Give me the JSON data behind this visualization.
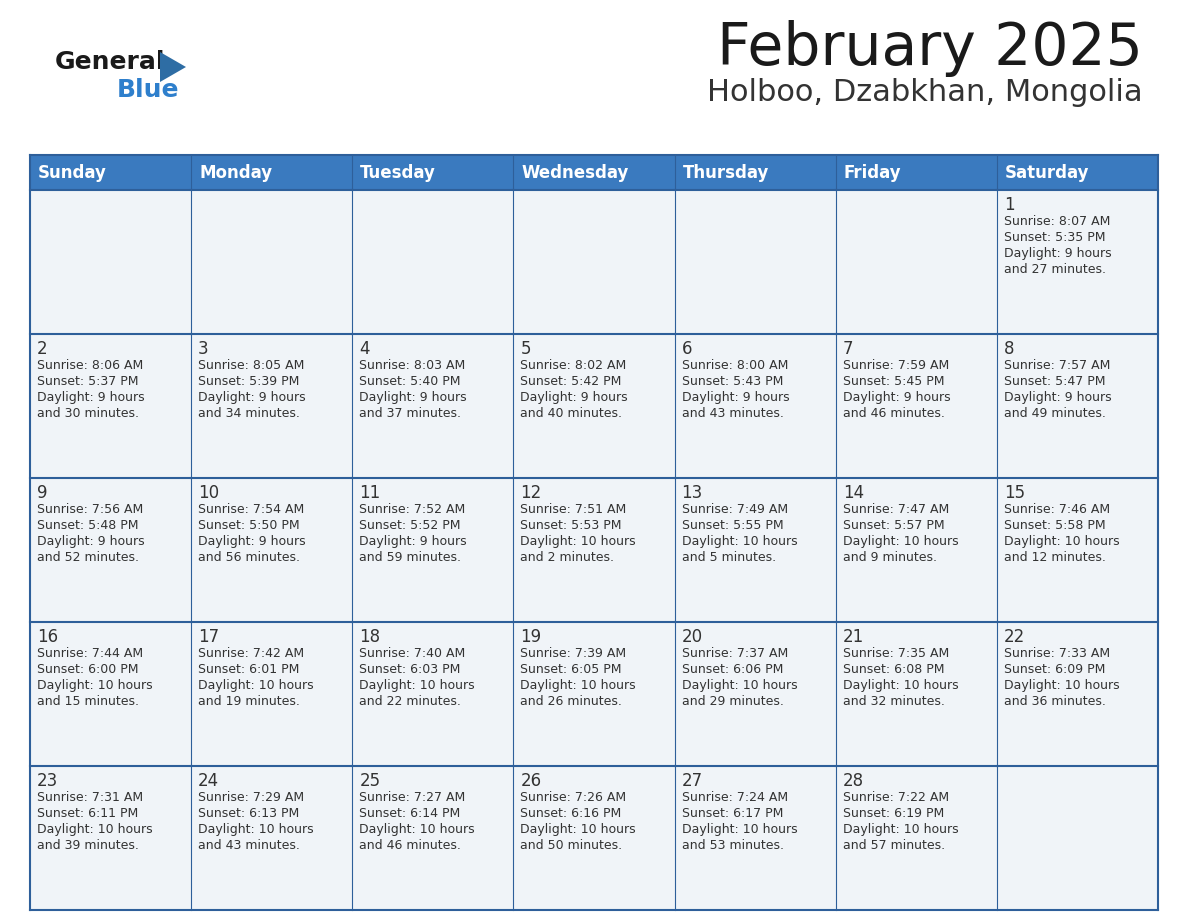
{
  "title": "February 2025",
  "subtitle": "Holboo, Dzabkhan, Mongolia",
  "days_of_week": [
    "Sunday",
    "Monday",
    "Tuesday",
    "Wednesday",
    "Thursday",
    "Friday",
    "Saturday"
  ],
  "header_bg": "#3a7abf",
  "header_text_color": "#FFFFFF",
  "cell_bg": "#f0f4f8",
  "border_color": "#2E5F9A",
  "day_num_color": "#333333",
  "info_text_color": "#333333",
  "title_color": "#1a1a1a",
  "subtitle_color": "#333333",
  "general_text_color": "#1a1a1a",
  "blue_text_color": "#2E7FCC",
  "triangle_color": "#2E6DA4",
  "calendar": [
    [
      {
        "day": null,
        "info": ""
      },
      {
        "day": null,
        "info": ""
      },
      {
        "day": null,
        "info": ""
      },
      {
        "day": null,
        "info": ""
      },
      {
        "day": null,
        "info": ""
      },
      {
        "day": null,
        "info": ""
      },
      {
        "day": 1,
        "info": "Sunrise: 8:07 AM\nSunset: 5:35 PM\nDaylight: 9 hours\nand 27 minutes."
      }
    ],
    [
      {
        "day": 2,
        "info": "Sunrise: 8:06 AM\nSunset: 5:37 PM\nDaylight: 9 hours\nand 30 minutes."
      },
      {
        "day": 3,
        "info": "Sunrise: 8:05 AM\nSunset: 5:39 PM\nDaylight: 9 hours\nand 34 minutes."
      },
      {
        "day": 4,
        "info": "Sunrise: 8:03 AM\nSunset: 5:40 PM\nDaylight: 9 hours\nand 37 minutes."
      },
      {
        "day": 5,
        "info": "Sunrise: 8:02 AM\nSunset: 5:42 PM\nDaylight: 9 hours\nand 40 minutes."
      },
      {
        "day": 6,
        "info": "Sunrise: 8:00 AM\nSunset: 5:43 PM\nDaylight: 9 hours\nand 43 minutes."
      },
      {
        "day": 7,
        "info": "Sunrise: 7:59 AM\nSunset: 5:45 PM\nDaylight: 9 hours\nand 46 minutes."
      },
      {
        "day": 8,
        "info": "Sunrise: 7:57 AM\nSunset: 5:47 PM\nDaylight: 9 hours\nand 49 minutes."
      }
    ],
    [
      {
        "day": 9,
        "info": "Sunrise: 7:56 AM\nSunset: 5:48 PM\nDaylight: 9 hours\nand 52 minutes."
      },
      {
        "day": 10,
        "info": "Sunrise: 7:54 AM\nSunset: 5:50 PM\nDaylight: 9 hours\nand 56 minutes."
      },
      {
        "day": 11,
        "info": "Sunrise: 7:52 AM\nSunset: 5:52 PM\nDaylight: 9 hours\nand 59 minutes."
      },
      {
        "day": 12,
        "info": "Sunrise: 7:51 AM\nSunset: 5:53 PM\nDaylight: 10 hours\nand 2 minutes."
      },
      {
        "day": 13,
        "info": "Sunrise: 7:49 AM\nSunset: 5:55 PM\nDaylight: 10 hours\nand 5 minutes."
      },
      {
        "day": 14,
        "info": "Sunrise: 7:47 AM\nSunset: 5:57 PM\nDaylight: 10 hours\nand 9 minutes."
      },
      {
        "day": 15,
        "info": "Sunrise: 7:46 AM\nSunset: 5:58 PM\nDaylight: 10 hours\nand 12 minutes."
      }
    ],
    [
      {
        "day": 16,
        "info": "Sunrise: 7:44 AM\nSunset: 6:00 PM\nDaylight: 10 hours\nand 15 minutes."
      },
      {
        "day": 17,
        "info": "Sunrise: 7:42 AM\nSunset: 6:01 PM\nDaylight: 10 hours\nand 19 minutes."
      },
      {
        "day": 18,
        "info": "Sunrise: 7:40 AM\nSunset: 6:03 PM\nDaylight: 10 hours\nand 22 minutes."
      },
      {
        "day": 19,
        "info": "Sunrise: 7:39 AM\nSunset: 6:05 PM\nDaylight: 10 hours\nand 26 minutes."
      },
      {
        "day": 20,
        "info": "Sunrise: 7:37 AM\nSunset: 6:06 PM\nDaylight: 10 hours\nand 29 minutes."
      },
      {
        "day": 21,
        "info": "Sunrise: 7:35 AM\nSunset: 6:08 PM\nDaylight: 10 hours\nand 32 minutes."
      },
      {
        "day": 22,
        "info": "Sunrise: 7:33 AM\nSunset: 6:09 PM\nDaylight: 10 hours\nand 36 minutes."
      }
    ],
    [
      {
        "day": 23,
        "info": "Sunrise: 7:31 AM\nSunset: 6:11 PM\nDaylight: 10 hours\nand 39 minutes."
      },
      {
        "day": 24,
        "info": "Sunrise: 7:29 AM\nSunset: 6:13 PM\nDaylight: 10 hours\nand 43 minutes."
      },
      {
        "day": 25,
        "info": "Sunrise: 7:27 AM\nSunset: 6:14 PM\nDaylight: 10 hours\nand 46 minutes."
      },
      {
        "day": 26,
        "info": "Sunrise: 7:26 AM\nSunset: 6:16 PM\nDaylight: 10 hours\nand 50 minutes."
      },
      {
        "day": 27,
        "info": "Sunrise: 7:24 AM\nSunset: 6:17 PM\nDaylight: 10 hours\nand 53 minutes."
      },
      {
        "day": 28,
        "info": "Sunrise: 7:22 AM\nSunset: 6:19 PM\nDaylight: 10 hours\nand 57 minutes."
      },
      {
        "day": null,
        "info": ""
      }
    ]
  ]
}
